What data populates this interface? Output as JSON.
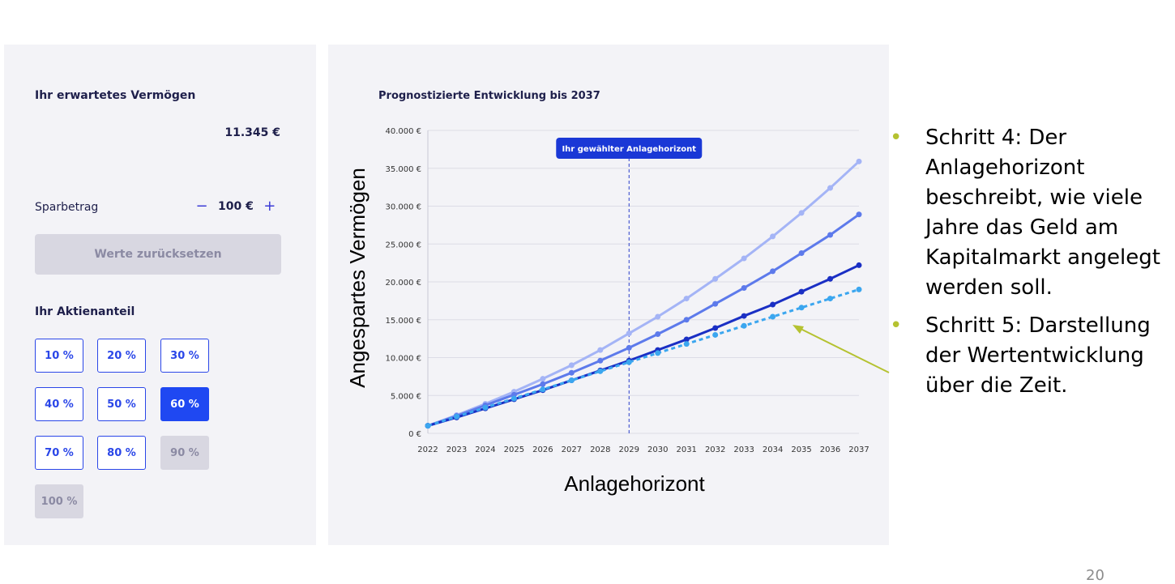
{
  "left_panel": {
    "title": "Ihr erwartetes Vermögen",
    "amount": "11.345 €",
    "savings_label": "Sparbetrag",
    "minus": "−",
    "savings_value": "100 €",
    "plus": "+",
    "reset_label": "Werte zurücksetzen",
    "equity_title": "Ihr Aktienanteil",
    "options": [
      {
        "label": "10 %",
        "state": "normal"
      },
      {
        "label": "20 %",
        "state": "normal"
      },
      {
        "label": "30 %",
        "state": "normal"
      },
      {
        "label": "40 %",
        "state": "normal"
      },
      {
        "label": "50 %",
        "state": "normal"
      },
      {
        "label": "60 %",
        "state": "active"
      },
      {
        "label": "70 %",
        "state": "normal"
      },
      {
        "label": "80 %",
        "state": "normal"
      },
      {
        "label": "90 %",
        "state": "disabled"
      },
      {
        "label": "100 %",
        "state": "disabled"
      }
    ]
  },
  "chart_data": {
    "type": "line",
    "title": "Prognostizierte Entwicklung bis 2037",
    "xlabel": "Anlagehorizont",
    "ylabel": "Angespartes Vermögen",
    "categories": [
      "2022",
      "2023",
      "2024",
      "2025",
      "2026",
      "2027",
      "2028",
      "2029",
      "2030",
      "2031",
      "2032",
      "2033",
      "2034",
      "2035",
      "2036",
      "2037"
    ],
    "ylim": [
      0,
      40000
    ],
    "yticks": [
      {
        "value": 0,
        "label": "0 €"
      },
      {
        "value": 5000,
        "label": "5.000 €"
      },
      {
        "value": 10000,
        "label": "10.000 €"
      },
      {
        "value": 15000,
        "label": "15.000 €"
      },
      {
        "value": 20000,
        "label": "20.000 €"
      },
      {
        "value": 25000,
        "label": "25.000 €"
      },
      {
        "value": 30000,
        "label": "30.000 €"
      },
      {
        "value": 35000,
        "label": "35.000 €"
      },
      {
        "value": 40000,
        "label": "40.000 €"
      }
    ],
    "grid": true,
    "marker_year": "2029",
    "marker_label": "Ihr gewählter Anlagehorizont",
    "series": [
      {
        "color": "#a4b4f6",
        "dashed": false,
        "values": [
          1000,
          2400,
          3900,
          5500,
          7200,
          9000,
          11000,
          13200,
          15400,
          17800,
          20400,
          23100,
          26000,
          29100,
          32400,
          35900
        ]
      },
      {
        "color": "#5d7aeb",
        "dashed": false,
        "values": [
          1000,
          2300,
          3700,
          5100,
          6500,
          8000,
          9600,
          11300,
          13100,
          15000,
          17100,
          19200,
          21400,
          23800,
          26200,
          28900
        ]
      },
      {
        "color": "#1a2fc4",
        "dashed": false,
        "values": [
          1000,
          2100,
          3300,
          4500,
          5700,
          7000,
          8300,
          9600,
          11000,
          12400,
          13900,
          15500,
          17000,
          18700,
          20400,
          22200
        ]
      },
      {
        "color": "#3ba6ef",
        "dashed": true,
        "values": [
          1000,
          2200,
          3400,
          4600,
          5800,
          7000,
          8200,
          9400,
          10600,
          11800,
          13000,
          14200,
          15400,
          16600,
          17800,
          19000
        ]
      }
    ]
  },
  "bullets": [
    "Schritt 4: Der Anlagehorizont beschreibt, wie viele Jahre das Geld am Kapitalmarkt angelegt werden soll.",
    "Schritt 5: Darstellung der Wertentwicklung über die Zeit."
  ],
  "bullet_symbol": "•",
  "page_number": "20",
  "colors": {
    "accent": "#1f48f2",
    "bullet": "#b5c231",
    "arrow": "#b5c231"
  }
}
